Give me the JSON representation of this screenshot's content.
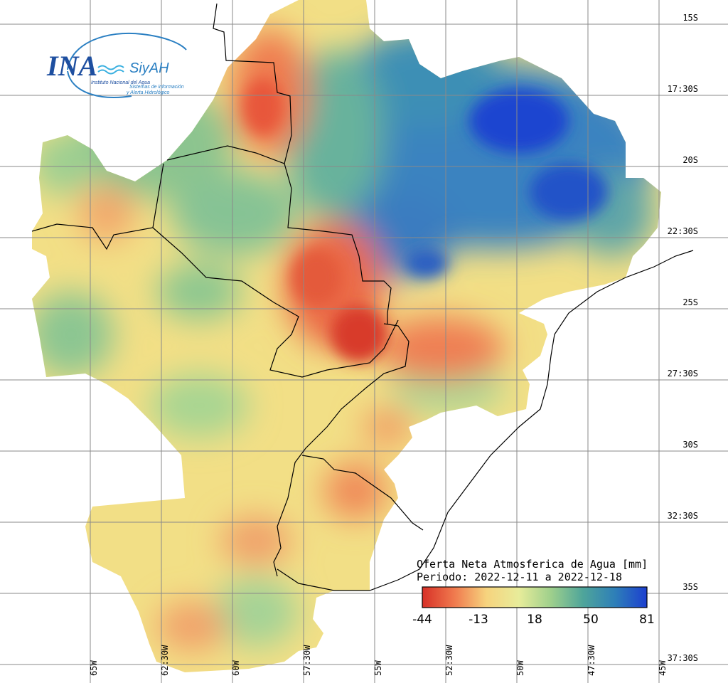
{
  "logo": {
    "name": "INA",
    "system": "SiyAH",
    "institute": "Instituto Nacional del Agua",
    "system_line1": "Sistemas de información",
    "system_line2": "y Alerta Hidrológico"
  },
  "latitude_labels": [
    "15S",
    "17:30S",
    "20S",
    "22:30S",
    "25S",
    "27:30S",
    "30S",
    "32:30S",
    "35S",
    "37:30S"
  ],
  "longitude_labels": [
    "65W",
    "62:30W",
    "60W",
    "57:30W",
    "55W",
    "52:30W",
    "50W",
    "47:30W",
    "45W"
  ],
  "legend": {
    "title": "Oferta Neta Atmosferica de Agua [mm]",
    "period": "Periodo: 2022-12-11 a 2022-12-18",
    "ticks": [
      "-44",
      "-13",
      "18",
      "50",
      "81"
    ],
    "colors": [
      "#d73027",
      "#f07a4e",
      "#f6d37e",
      "#e8ec9a",
      "#9fd08c",
      "#4fa59a",
      "#2e7fb8",
      "#1c3fd0"
    ]
  },
  "colors": {
    "dry": "#e0593a",
    "neutral": "#f2e08a",
    "wet": "#2a6fc0",
    "very_wet": "#1b3fd0",
    "grid": "#8a8a8a",
    "border": "#000000"
  }
}
